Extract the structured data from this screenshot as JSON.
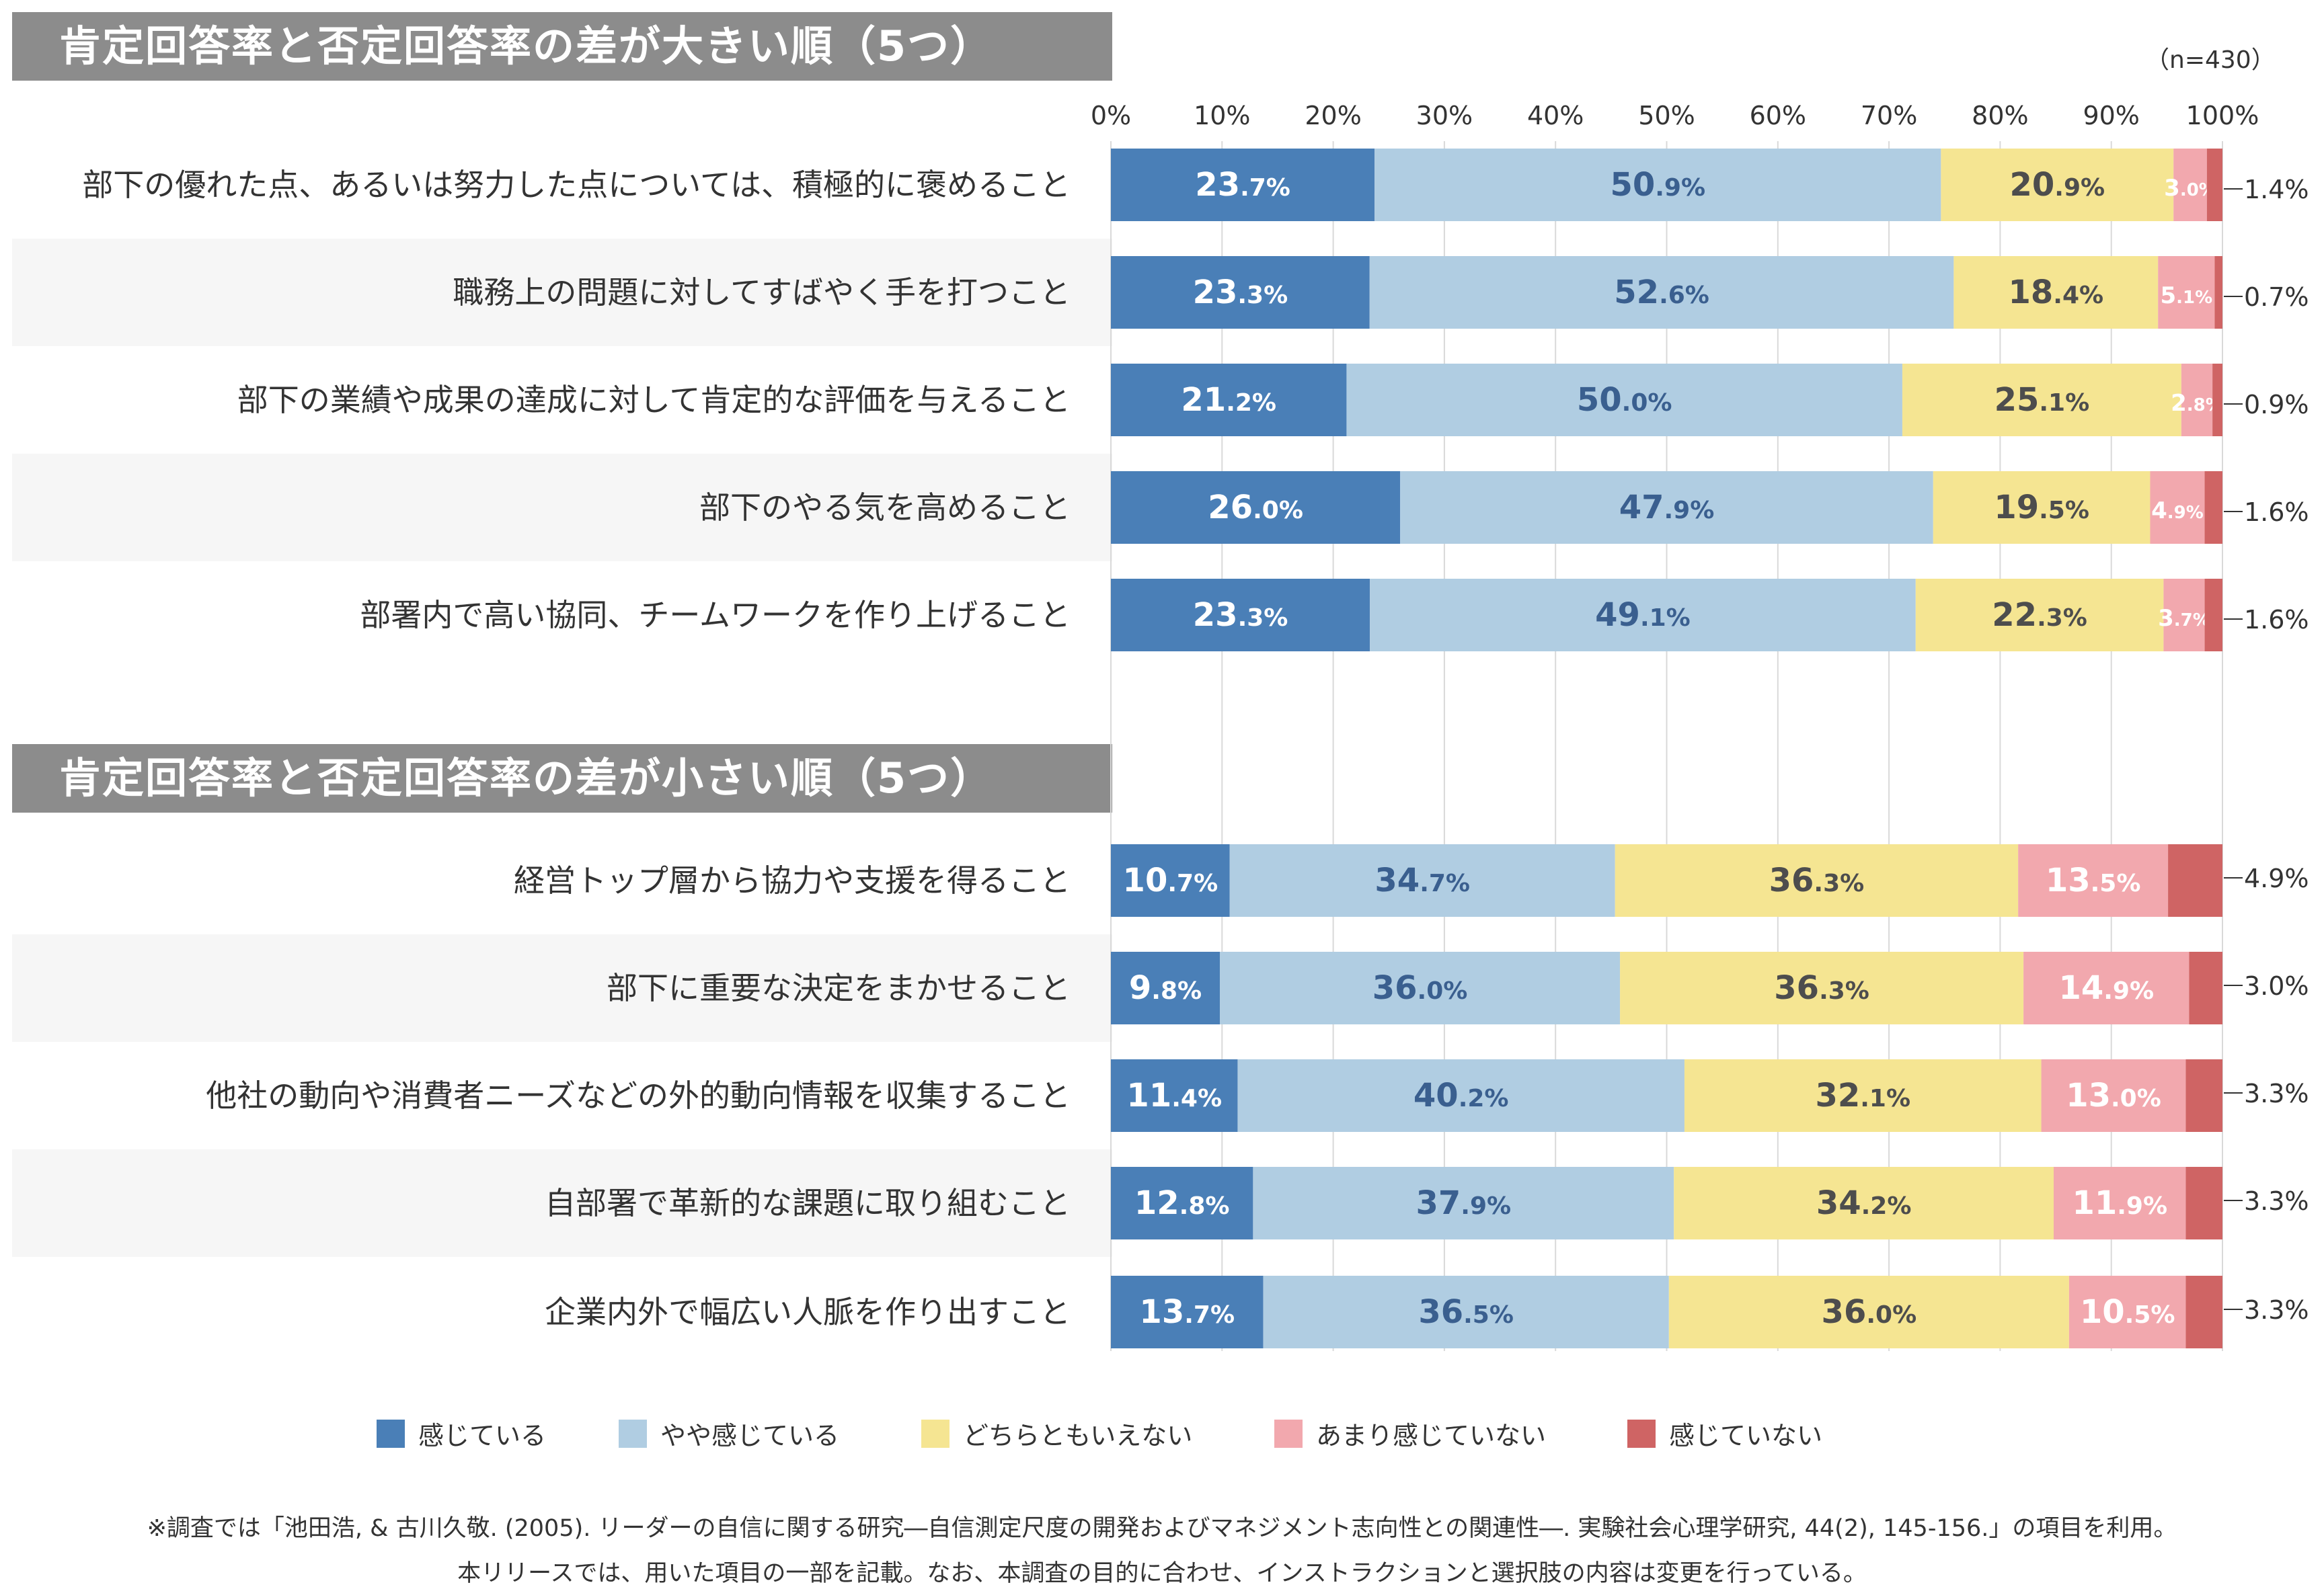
{
  "headers": {
    "top": "肯定回答率と否定回答率の差が大きい順（5つ）",
    "bottom": "肯定回答率と否定回答率の差が小さい順（5つ）"
  },
  "sample_size": "（n=430）",
  "colors": [
    "#4a7fb7",
    "#b0cde2",
    "#f5e592",
    "#f2a8ae",
    "#cf6464"
  ],
  "chart_data": {
    "type": "bar",
    "orientation": "horizontal",
    "stacked": true,
    "xlim": [
      0,
      100
    ],
    "xticks": [
      "0%",
      "10%",
      "20%",
      "30%",
      "40%",
      "50%",
      "60%",
      "70%",
      "80%",
      "90%",
      "100%"
    ],
    "legend": [
      "感じている",
      "やや感じている",
      "どちらともいえない",
      "あまり感じていない",
      "感じていない"
    ],
    "legend_position": "bottom",
    "groups": [
      {
        "items": [
          {
            "label": "部下の優れた点、あるいは努力した点については、積極的に褒めること",
            "values": [
              23.7,
              50.9,
              20.9,
              3.0,
              1.4
            ]
          },
          {
            "label": "職務上の問題に対してすばやく手を打つこと",
            "values": [
              23.3,
              52.6,
              18.4,
              5.1,
              0.7
            ]
          },
          {
            "label": "部下の業績や成果の達成に対して肯定的な評価を与えること",
            "values": [
              21.2,
              50.0,
              25.1,
              2.8,
              0.9
            ]
          },
          {
            "label": "部下のやる気を高めること",
            "values": [
              26.0,
              47.9,
              19.5,
              4.9,
              1.6
            ]
          },
          {
            "label": "部署内で高い協同、チームワークを作り上げること",
            "values": [
              23.3,
              49.1,
              22.3,
              3.7,
              1.6
            ]
          }
        ]
      },
      {
        "items": [
          {
            "label": "経営トップ層から協力や支援を得ること",
            "values": [
              10.7,
              34.7,
              36.3,
              13.5,
              4.9
            ]
          },
          {
            "label": "部下に重要な決定をまかせること",
            "values": [
              9.8,
              36.0,
              36.3,
              14.9,
              3.0
            ]
          },
          {
            "label": "他社の動向や消費者ニーズなどの外的動向情報を収集すること",
            "values": [
              11.4,
              40.2,
              32.1,
              13.0,
              3.3
            ]
          },
          {
            "label": "自部署で革新的な課題に取り組むこと",
            "values": [
              12.8,
              37.9,
              34.2,
              11.9,
              3.3
            ]
          },
          {
            "label": "企業内外で幅広い人脈を作り出すこと",
            "values": [
              13.7,
              36.5,
              36.0,
              10.5,
              3.3
            ]
          }
        ]
      }
    ]
  },
  "notes": [
    "※調査では「池田浩, & 古川久敬. (2005). リーダーの自信に関する研究―自信測定尺度の開発およびマネジメント志向性との関連性―. 実験社会心理学研究, 44(2), 145-156.」の項目を利用。",
    "本リリースでは、用いた項目の一部を記載。なお、本調査の目的に合わせ、インストラクションと選択肢の内容は変更を行っている。"
  ]
}
